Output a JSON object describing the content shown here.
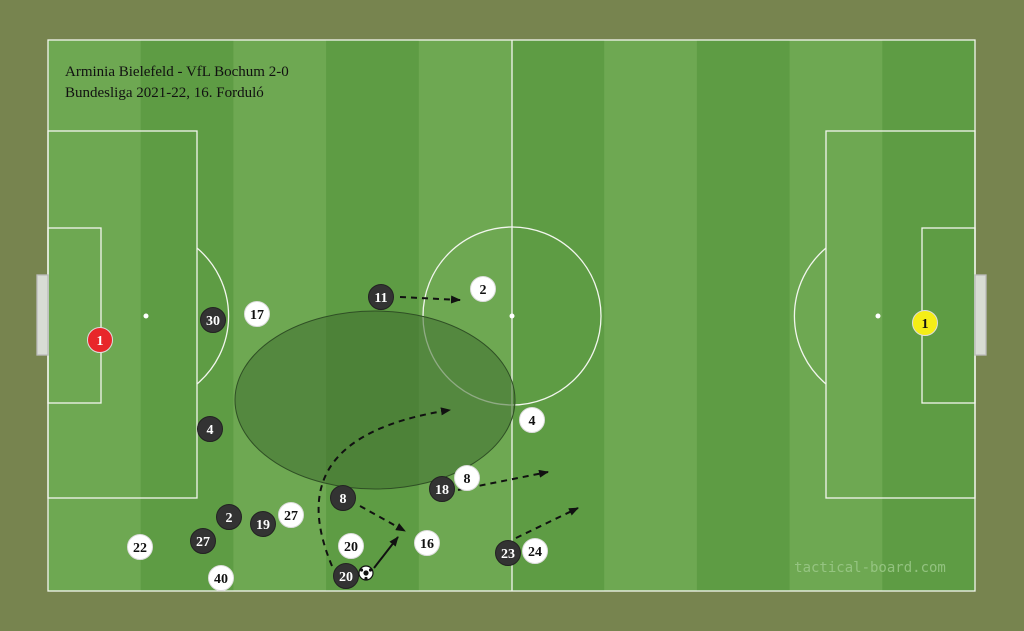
{
  "title": {
    "line1": "Arminia Bielefeld - VfL Bochum 2-0",
    "line2": "Bundesliga 2021-22, 16. Forduló"
  },
  "watermark": "tactical-board.com",
  "colors": {
    "background": "#77844f",
    "stripe_light": "#6ea852",
    "stripe_dark": "#5e9c44",
    "team_dark": "#333333",
    "team_white": "#ffffff",
    "goalkeeper_left": "#e8262a",
    "goalkeeper_right": "#f5ee17",
    "zone": "#3f6e30"
  },
  "players": [
    {
      "number": "11",
      "team": "dark"
    },
    {
      "number": "30",
      "team": "dark"
    },
    {
      "number": "4",
      "team": "dark"
    },
    {
      "number": "8",
      "team": "dark"
    },
    {
      "number": "18",
      "team": "dark"
    },
    {
      "number": "2",
      "team": "dark"
    },
    {
      "number": "27",
      "team": "dark"
    },
    {
      "number": "19",
      "team": "dark"
    },
    {
      "number": "20",
      "team": "dark"
    },
    {
      "number": "23",
      "team": "dark"
    },
    {
      "number": "2",
      "team": "white"
    },
    {
      "number": "17",
      "team": "white"
    },
    {
      "number": "4",
      "team": "white"
    },
    {
      "number": "8",
      "team": "white"
    },
    {
      "number": "27",
      "team": "white"
    },
    {
      "number": "22",
      "team": "white"
    },
    {
      "number": "40",
      "team": "white"
    },
    {
      "number": "20",
      "team": "white"
    },
    {
      "number": "16",
      "team": "white"
    },
    {
      "number": "24",
      "team": "white"
    },
    {
      "number": "1",
      "team": "goalkeeper_left"
    },
    {
      "number": "1",
      "team": "goalkeeper_right"
    }
  ]
}
